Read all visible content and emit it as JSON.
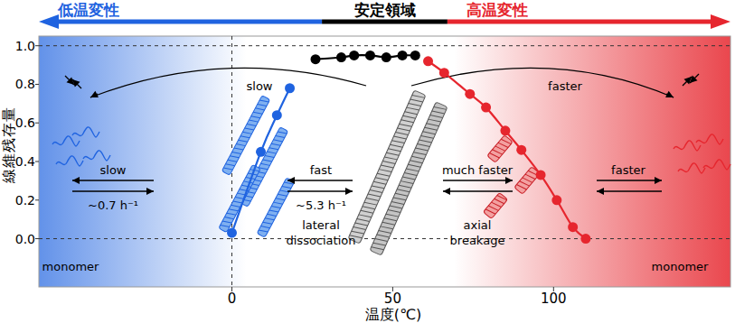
{
  "chart_data": {
    "type": "line",
    "x_label": "温度(℃)",
    "y_label": "線維残存量",
    "xlim": [
      -60,
      155
    ],
    "ylim": [
      -0.25,
      1.05
    ],
    "xticks": [
      0,
      50,
      100
    ],
    "yticks": [
      {
        "value": 0,
        "label": "0.0"
      },
      0.2,
      0.4,
      0.6,
      0.8,
      {
        "value": 1,
        "label": "1.0"
      }
    ],
    "marker": "circle",
    "line_style": "solid",
    "series": [
      {
        "color": "#1f63e0",
        "x": [
          0,
          9,
          14,
          18
        ],
        "values": [
          0.03,
          0.45,
          0.64,
          0.78
        ]
      },
      {
        "color": "#000000",
        "x": [
          26,
          34,
          38,
          43,
          48,
          53,
          57
        ],
        "values": [
          0.93,
          0.94,
          0.95,
          0.95,
          0.94,
          0.95,
          0.95
        ]
      },
      {
        "color": "#e6262e",
        "x": [
          61,
          66,
          74,
          79,
          85,
          90,
          96,
          101,
          106,
          110
        ],
        "values": [
          0.92,
          0.86,
          0.75,
          0.68,
          0.56,
          0.46,
          0.33,
          0.2,
          0.06,
          0.0
        ]
      }
    ],
    "regions": [
      {
        "label": "低温変性",
        "color": "#1f63e0",
        "range": [
          -60,
          28
        ]
      },
      {
        "label": "安定領域",
        "color": "#000000",
        "range": [
          28,
          67
        ]
      },
      {
        "label": "高温変性",
        "color": "#e6262e",
        "range": [
          67,
          155
        ]
      }
    ],
    "annotations": [
      "slow",
      "slow",
      "~0.7 h⁻¹",
      "monomer",
      "fast",
      "~5.3 h⁻¹",
      "lateral dissociation",
      "much faster",
      "axial breakage",
      "faster",
      "faster",
      "monomer"
    ]
  }
}
